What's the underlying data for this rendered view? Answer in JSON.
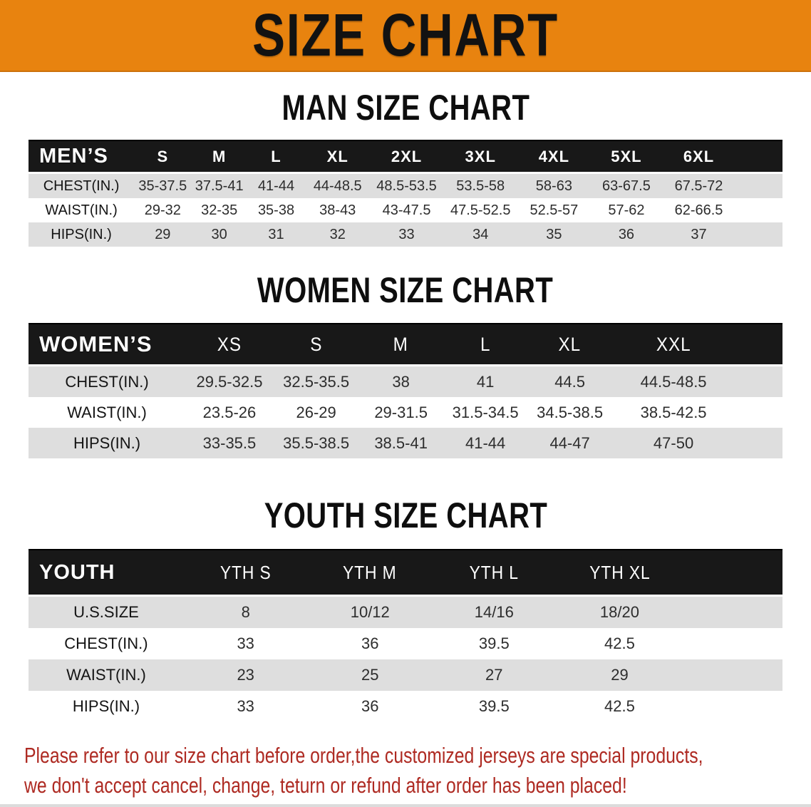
{
  "banner": {
    "title": "SIZE CHART"
  },
  "colors": {
    "banner_bg": "#E8830F",
    "header_bg": "#181818",
    "stripe": "#DEDEDE",
    "footer_red": "#AE2A22"
  },
  "sections": [
    {
      "title": "MAN SIZE CHART",
      "header_label": "MEN’S",
      "columns": [
        "S",
        "M",
        "L",
        "XL",
        "2XL",
        "3XL",
        "4XL",
        "5XL",
        "6XL"
      ],
      "rows": [
        {
          "label": "CHEST(IN.)",
          "values": [
            "35-37.5",
            "37.5-41",
            "41-44",
            "44-48.5",
            "48.5-53.5",
            "53.5-58",
            "58-63",
            "63-67.5",
            "67.5-72"
          ]
        },
        {
          "label": "WAIST(IN.)",
          "values": [
            "29-32",
            "32-35",
            "35-38",
            "38-43",
            "43-47.5",
            "47.5-52.5",
            "52.5-57",
            "57-62",
            "62-66.5"
          ]
        },
        {
          "label": "HIPS(IN.)",
          "values": [
            "29",
            "30",
            "31",
            "32",
            "33",
            "34",
            "35",
            "36",
            "37"
          ]
        }
      ]
    },
    {
      "title": "WOMEN SIZE CHART",
      "header_label": "WOMEN’S",
      "columns": [
        "XS",
        "S",
        "M",
        "L",
        "XL",
        "XXL"
      ],
      "rows": [
        {
          "label": "CHEST(IN.)",
          "values": [
            "29.5-32.5",
            "32.5-35.5",
            "38",
            "41",
            "44.5",
            "44.5-48.5"
          ]
        },
        {
          "label": "WAIST(IN.)",
          "values": [
            "23.5-26",
            "26-29",
            "29-31.5",
            "31.5-34.5",
            "34.5-38.5",
            "38.5-42.5"
          ]
        },
        {
          "label": "HIPS(IN.)",
          "values": [
            "33-35.5",
            "35.5-38.5",
            "38.5-41",
            "41-44",
            "44-47",
            "47-50"
          ]
        }
      ]
    },
    {
      "title": "YOUTH SIZE CHART",
      "header_label": "YOUTH",
      "columns": [
        "YTH S",
        "YTH M",
        "YTH L",
        "YTH XL"
      ],
      "rows": [
        {
          "label": "U.S.SIZE",
          "values": [
            "8",
            "10/12",
            "14/16",
            "18/20"
          ]
        },
        {
          "label": "CHEST(IN.)",
          "values": [
            "33",
            "36",
            "39.5",
            "42.5"
          ]
        },
        {
          "label": "WAIST(IN.)",
          "values": [
            "23",
            "25",
            "27",
            "29"
          ]
        },
        {
          "label": "HIPS(IN.)",
          "values": [
            "33",
            "36",
            "39.5",
            "42.5"
          ]
        }
      ]
    }
  ],
  "footer": {
    "line1": "Please refer to our size chart before order,the customized jerseys are special products,",
    "line2": "we don't accept cancel, change, teturn or refund after order has been placed!"
  }
}
